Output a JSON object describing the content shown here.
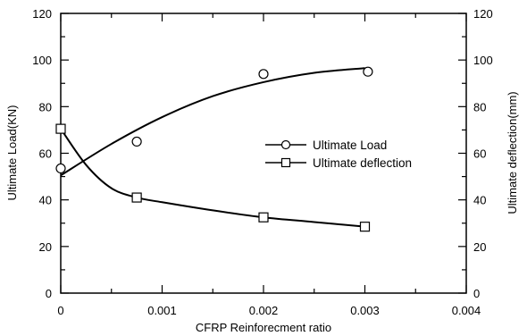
{
  "chart_data": {
    "type": "scatter",
    "title": "",
    "xlabel": "CFRP Reinforecment ratio",
    "ylabel": "Ultimate Load(KN)",
    "ylabel_right": "Ultimate deflection(mm)",
    "xlim": [
      0,
      0.004
    ],
    "ylim": [
      0,
      120
    ],
    "ylim_right": [
      0,
      120
    ],
    "x_ticks": [
      "0",
      "0.001",
      "0.002",
      "0.003",
      "0.004"
    ],
    "y_ticks": [
      "0",
      "20",
      "40",
      "60",
      "80",
      "100",
      "120"
    ],
    "y_ticks_right": [
      "0",
      "20",
      "40",
      "60",
      "80",
      "100",
      "120"
    ],
    "grid": false,
    "legend_position": "center-right",
    "series": [
      {
        "name": "Ultimate Load",
        "marker": "circle",
        "axis": "left",
        "x": [
          0,
          0.00075,
          0.002,
          0.00303
        ],
        "y": [
          53.5,
          65,
          94,
          95
        ],
        "fit_x": [
          0,
          0.0005,
          0.001,
          0.0015,
          0.002,
          0.0025,
          0.003
        ],
        "fit_y": [
          50.5,
          64,
          75.5,
          84.5,
          90.5,
          94.5,
          96.5
        ]
      },
      {
        "name": "Ultimate deflection",
        "marker": "square",
        "axis": "right",
        "x": [
          0,
          0.00075,
          0.002,
          0.003
        ],
        "y": [
          70.5,
          41,
          32.5,
          28.5
        ],
        "fit_x": [
          0,
          0.00025,
          0.0005,
          0.00075,
          0.001,
          0.0015,
          0.002,
          0.0025,
          0.003
        ],
        "fit_y": [
          70.5,
          55,
          45,
          41,
          39,
          35.5,
          32.5,
          30.5,
          28.5
        ]
      }
    ]
  }
}
